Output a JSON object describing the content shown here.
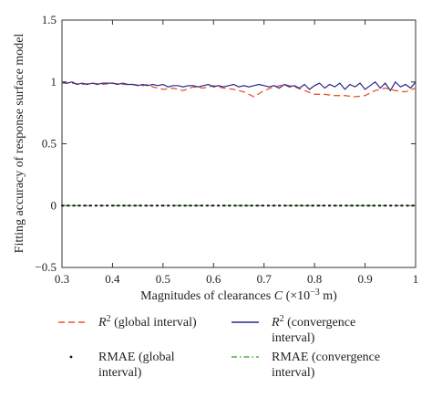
{
  "chart_data": {
    "type": "line",
    "xlabel": "Magnitudes of clearances C (×10⁻³ m)",
    "xlabel_parts": {
      "prefix": "Magnitudes of clearances ",
      "var": "C",
      "open": " (×10",
      "exp": "−3",
      "unit": " m)"
    },
    "ylabel": "Fitting accuracy of response surface model",
    "xlim": [
      0.3,
      1.0
    ],
    "ylim": [
      -0.5,
      1.5
    ],
    "xticks": [
      "0.3",
      "0.4",
      "0.5",
      "0.6",
      "0.7",
      "0.8",
      "0.9",
      "1"
    ],
    "yticks": [
      "−0.5",
      "0",
      "0.5",
      "1",
      "1.5"
    ],
    "grid": false,
    "legend_position": "bottom",
    "series": [
      {
        "name": "R² (global interval)",
        "label_main": "R",
        "label_sup": "2",
        "label_rest": " (global interval)",
        "label_line2": "",
        "color": "#e8552a",
        "style": "dashed",
        "x": [
          0.3,
          0.32,
          0.34,
          0.36,
          0.38,
          0.4,
          0.42,
          0.44,
          0.46,
          0.47,
          0.48,
          0.5,
          0.52,
          0.54,
          0.56,
          0.58,
          0.6,
          0.62,
          0.64,
          0.66,
          0.68,
          0.7,
          0.72,
          0.74,
          0.76,
          0.78,
          0.8,
          0.82,
          0.84,
          0.86,
          0.88,
          0.9,
          0.92,
          0.94,
          0.96,
          0.98,
          1.0
        ],
        "y": [
          0.99,
          0.99,
          0.98,
          0.99,
          0.98,
          0.99,
          0.98,
          0.98,
          0.97,
          0.98,
          0.96,
          0.94,
          0.95,
          0.93,
          0.96,
          0.95,
          0.97,
          0.95,
          0.94,
          0.92,
          0.88,
          0.93,
          0.96,
          0.98,
          0.96,
          0.93,
          0.9,
          0.9,
          0.89,
          0.89,
          0.88,
          0.89,
          0.93,
          0.95,
          0.93,
          0.92,
          0.95
        ]
      },
      {
        "name": "R² (convergence interval)",
        "label_main": "R",
        "label_sup": "2",
        "label_rest": " (convergence",
        "label_line2": "interval)",
        "color": "#2a2a8c",
        "style": "solid",
        "x": [
          0.3,
          0.31,
          0.32,
          0.33,
          0.34,
          0.35,
          0.36,
          0.37,
          0.38,
          0.39,
          0.4,
          0.41,
          0.42,
          0.43,
          0.44,
          0.45,
          0.46,
          0.47,
          0.48,
          0.49,
          0.5,
          0.51,
          0.52,
          0.53,
          0.54,
          0.55,
          0.56,
          0.57,
          0.58,
          0.59,
          0.6,
          0.61,
          0.62,
          0.63,
          0.64,
          0.65,
          0.66,
          0.67,
          0.68,
          0.69,
          0.7,
          0.71,
          0.72,
          0.73,
          0.74,
          0.75,
          0.76,
          0.77,
          0.78,
          0.79,
          0.8,
          0.81,
          0.82,
          0.83,
          0.84,
          0.85,
          0.86,
          0.87,
          0.88,
          0.89,
          0.9,
          0.91,
          0.92,
          0.93,
          0.94,
          0.95,
          0.96,
          0.97,
          0.98,
          0.99,
          1.0
        ],
        "y": [
          1.0,
          0.99,
          1.0,
          0.98,
          0.99,
          0.98,
          0.99,
          0.98,
          0.99,
          0.99,
          0.99,
          0.98,
          0.99,
          0.98,
          0.98,
          0.97,
          0.98,
          0.97,
          0.98,
          0.97,
          0.98,
          0.96,
          0.97,
          0.97,
          0.96,
          0.97,
          0.97,
          0.96,
          0.97,
          0.98,
          0.96,
          0.97,
          0.96,
          0.97,
          0.98,
          0.96,
          0.97,
          0.96,
          0.97,
          0.98,
          0.97,
          0.96,
          0.97,
          0.95,
          0.98,
          0.96,
          0.97,
          0.95,
          0.98,
          0.94,
          0.97,
          0.99,
          0.95,
          0.98,
          0.96,
          0.99,
          0.94,
          0.98,
          0.96,
          0.99,
          0.94,
          0.97,
          1.0,
          0.95,
          0.99,
          0.93,
          1.0,
          0.96,
          0.98,
          0.95,
          1.0
        ]
      },
      {
        "name": "RMAE (global interval)",
        "label_main": "RMAE",
        "label_sup": "",
        "label_rest": " (global",
        "label_line2": "interval)",
        "color": "#111111",
        "style": "dotted",
        "x": [
          0.3,
          0.4,
          0.5,
          0.6,
          0.7,
          0.8,
          0.9,
          1.0
        ],
        "y": [
          0.0,
          0.0,
          0.0,
          0.0,
          0.0,
          0.0,
          0.0,
          0.0
        ]
      },
      {
        "name": "RMAE (convergence interval)",
        "label_main": "RMAE",
        "label_sup": "",
        "label_rest": " (convergence",
        "label_line2": "interval)",
        "color": "#4caf3a",
        "style": "dashdot",
        "x": [
          0.3,
          0.4,
          0.5,
          0.6,
          0.7,
          0.8,
          0.9,
          1.0
        ],
        "y": [
          0.0,
          0.0,
          0.0,
          0.0,
          0.0,
          0.0,
          0.0,
          0.0
        ]
      }
    ]
  }
}
